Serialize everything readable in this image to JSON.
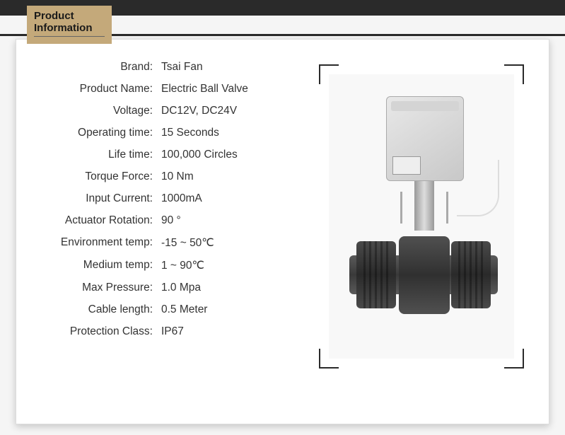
{
  "header": {
    "line1": "Product",
    "line2": "Information"
  },
  "specs": [
    {
      "label": "Brand:",
      "value": "Tsai  Fan"
    },
    {
      "label": "Product Name:",
      "value": "Electric Ball Valve"
    },
    {
      "label": "Voltage:",
      "value": "DC12V, DC24V"
    },
    {
      "label": "Operating time:",
      "value": "15 Seconds"
    },
    {
      "label": "Life time:",
      "value": "100,000 Circles"
    },
    {
      "label": "Torque Force:",
      "value": "10 Nm"
    },
    {
      "label": "Input Current:",
      "value": "1000mA"
    },
    {
      "label": "Actuator Rotation:",
      "value": "  90 °"
    },
    {
      "label": "Environment temp:",
      "value": "-15 ~ 50℃"
    },
    {
      "label": "Medium temp:",
      "value": "1 ~ 90℃"
    },
    {
      "label": "Max Pressure:",
      "value": "1.0 Mpa"
    },
    {
      "label": "Cable length:",
      "value": "0.5 Meter"
    },
    {
      "label": "Protection Class:",
      "value": " IP67"
    }
  ],
  "colors": {
    "tab_bg": "#c4a97a",
    "bar_bg": "#2a2a2a",
    "card_bg": "#ffffff",
    "page_bg": "#f5f5f5",
    "text": "#333333"
  },
  "image": {
    "description": "Electric ball valve with grey actuator box on top, metal stem, and dark grey PVC union valve body",
    "frame_color": "#2a2a2a"
  },
  "typography": {
    "font": "Arial",
    "spec_fontsize": 15.5,
    "header_fontsize": 15
  }
}
